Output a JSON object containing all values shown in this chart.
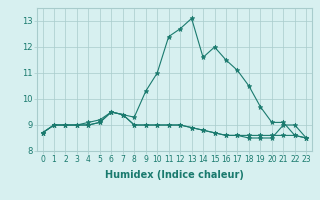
{
  "xlabel": "Humidex (Indice chaleur)",
  "x": [
    0,
    1,
    2,
    3,
    4,
    5,
    6,
    7,
    8,
    9,
    10,
    11,
    12,
    13,
    14,
    15,
    16,
    17,
    18,
    19,
    20,
    21,
    22,
    23
  ],
  "line1": [
    8.7,
    9.0,
    9.0,
    9.0,
    9.0,
    9.1,
    9.5,
    9.4,
    9.0,
    9.0,
    9.0,
    9.0,
    9.0,
    8.9,
    8.8,
    8.7,
    8.6,
    8.6,
    8.6,
    8.6,
    8.6,
    8.6,
    8.6,
    8.5
  ],
  "line2": [
    8.7,
    9.0,
    9.0,
    9.0,
    9.0,
    9.1,
    9.5,
    9.4,
    9.0,
    9.0,
    9.0,
    9.0,
    9.0,
    8.9,
    8.8,
    8.7,
    8.6,
    8.6,
    8.5,
    8.5,
    8.5,
    9.0,
    9.0,
    8.5
  ],
  "line3": [
    8.7,
    9.0,
    9.0,
    9.0,
    9.1,
    9.2,
    9.5,
    9.4,
    9.3,
    10.3,
    11.0,
    12.4,
    12.7,
    13.1,
    11.6,
    12.0,
    11.5,
    11.1,
    10.5,
    9.7,
    9.1,
    9.1,
    8.6,
    8.5
  ],
  "ylim": [
    8.0,
    13.5
  ],
  "xlim": [
    -0.5,
    23.5
  ],
  "yticks": [
    8,
    9,
    10,
    11,
    12,
    13
  ],
  "xticks": [
    0,
    1,
    2,
    3,
    4,
    5,
    6,
    7,
    8,
    9,
    10,
    11,
    12,
    13,
    14,
    15,
    16,
    17,
    18,
    19,
    20,
    21,
    22,
    23
  ],
  "line_color": "#1a7a6e",
  "bg_color": "#d7f0f0",
  "grid_color": "#a8cccc",
  "marker": "*",
  "markersize": 3.5,
  "linewidth": 0.8,
  "tick_fontsize": 5.5,
  "xlabel_fontsize": 7.0
}
